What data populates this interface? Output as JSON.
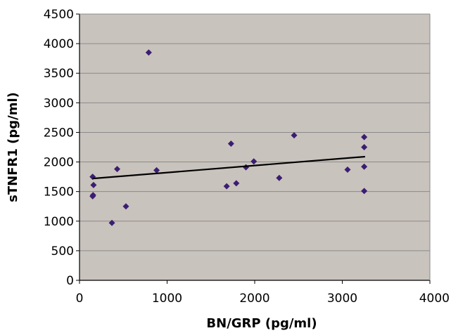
{
  "chart_data": {
    "type": "scatter",
    "title": "",
    "xlabel": "BN/GRP (pg/ml)",
    "ylabel": "sTNFR1 (pg/ml)",
    "xlim": [
      0,
      4000
    ],
    "ylim": [
      0,
      4500
    ],
    "xticks": [
      0,
      1000,
      2000,
      3000,
      4000
    ],
    "yticks": [
      0,
      500,
      1000,
      1500,
      2000,
      2500,
      3000,
      3500,
      4000,
      4500
    ],
    "grid": true,
    "legend": "none",
    "colors": {
      "plot_background": "#c9c3bd",
      "marker": "#3b1e72",
      "trendline": "#000000",
      "gridline": "#8a8a8a"
    },
    "series": [
      {
        "points": [
          [
            150,
            1750
          ],
          [
            160,
            1610
          ],
          [
            150,
            1420
          ],
          [
            155,
            1440
          ],
          [
            370,
            970
          ],
          [
            430,
            1880
          ],
          [
            530,
            1250
          ],
          [
            790,
            3850
          ],
          [
            880,
            1860
          ],
          [
            1680,
            1590
          ],
          [
            1730,
            2310
          ],
          [
            1790,
            1640
          ],
          [
            1900,
            1910
          ],
          [
            1990,
            2010
          ],
          [
            2280,
            1730
          ],
          [
            2450,
            2450
          ],
          [
            3060,
            1870
          ],
          [
            3250,
            2420
          ],
          [
            3250,
            2250
          ],
          [
            3250,
            1920
          ],
          [
            3250,
            1510
          ]
        ]
      }
    ],
    "trendline": {
      "x": [
        150,
        3260
      ],
      "y": [
        1720,
        2090
      ]
    }
  }
}
